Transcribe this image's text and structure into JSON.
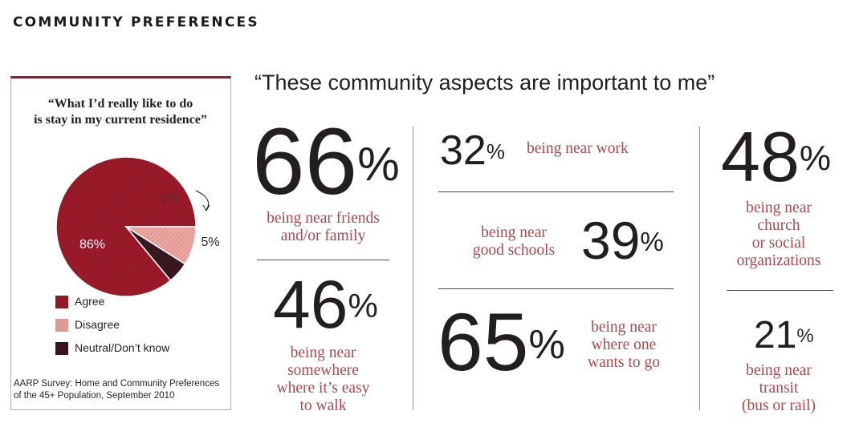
{
  "header": {
    "title": "COMMUNITY PREFERENCES"
  },
  "quote": "“These community aspects are important to me”",
  "pie": {
    "title_line1": "“What I’d really like to do",
    "title_line2": "is stay in my current residence”",
    "source_line1": "AARP Survey: Home and Community Preferences",
    "source_line2": "of the 45+ Population, September 2010"
  },
  "chart_data": [
    {
      "type": "pie",
      "title": "“What I’d really like to do is stay in my current residence”",
      "categories": [
        "Agree",
        "Disagree",
        "Neutral/Don’t know"
      ],
      "values": [
        86,
        9,
        5
      ],
      "labels": [
        "86%",
        "9%",
        "5%"
      ],
      "colors": [
        "#9b1b2a",
        "#e8a29d",
        "#3a1a1f"
      ],
      "legend": "bottom"
    },
    {
      "type": "table",
      "title": "“These community aspects are important to me”",
      "rows": [
        {
          "value": 66,
          "label": "66",
          "suffix": "%",
          "caption": [
            "being near friends",
            "and/or family"
          ]
        },
        {
          "value": 46,
          "label": "46",
          "suffix": "%",
          "caption": [
            "being near",
            "somewhere",
            "where it’s easy",
            "to walk"
          ]
        },
        {
          "value": 32,
          "label": "32",
          "suffix": "%",
          "caption": [
            "being near work"
          ]
        },
        {
          "value": 39,
          "label": "39",
          "suffix": "%",
          "caption": [
            "being near",
            "good schools"
          ]
        },
        {
          "value": 65,
          "label": "65",
          "suffix": "%",
          "caption": [
            "being near",
            "where one",
            "wants to go"
          ]
        },
        {
          "value": 48,
          "label": "48",
          "suffix": "%",
          "caption": [
            "being near",
            "church",
            "or social",
            "organizations"
          ]
        },
        {
          "value": 21,
          "label": "21",
          "suffix": "%",
          "caption": [
            "being near",
            "transit",
            "(bus or rail)"
          ]
        }
      ]
    }
  ]
}
